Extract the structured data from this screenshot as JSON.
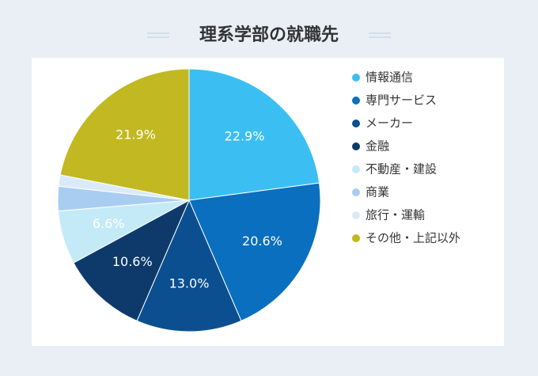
{
  "chart_data": {
    "type": "pie",
    "title": "理系学部の就職先",
    "categories": [
      "情報通信",
      "専門サービス",
      "メーカー",
      "金融",
      "不動産・建設",
      "商業",
      "旅行・運輸",
      "その他・上記以外"
    ],
    "values": [
      22.9,
      20.6,
      13.0,
      10.6,
      6.6,
      3.0,
      1.4,
      21.9
    ],
    "value_labels": [
      "22.9%",
      "20.6%",
      "13.0%",
      "10.6%",
      "6.6%",
      null,
      null,
      "21.9%"
    ],
    "colors": [
      "#3bbff3",
      "#0a6fbf",
      "#0b4f91",
      "#0e3a6b",
      "#c4eaf7",
      "#a9cdf0",
      "#dbeaf9",
      "#c2b822"
    ],
    "legend": "right"
  }
}
